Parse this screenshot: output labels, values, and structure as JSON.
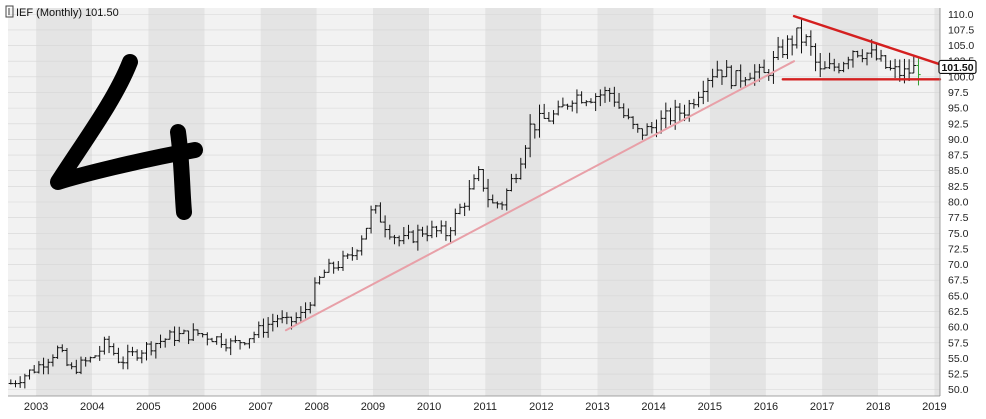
{
  "chart_data": {
    "type": "ohlc",
    "symbol": "IEF",
    "legend_label": "IEF (Monthly) 101.50",
    "last_price_label": "101.50",
    "annotation_digit": "4",
    "x_tick_labels": [
      "2003",
      "2004",
      "2005",
      "2006",
      "2007",
      "2008",
      "2009",
      "2010",
      "2011",
      "2012",
      "2013",
      "2014",
      "2015",
      "2016",
      "2017",
      "2018",
      "2019"
    ],
    "y_tick_labels": [
      "110.0",
      "107.5",
      "105.0",
      "102.5",
      "100.0",
      "97.5",
      "95.0",
      "92.5",
      "90.0",
      "87.5",
      "85.0",
      "82.5",
      "80.0",
      "77.5",
      "75.0",
      "72.5",
      "70.0",
      "67.5",
      "65.0",
      "62.5",
      "60.0",
      "57.5",
      "55.0",
      "52.5",
      "50.0"
    ],
    "ylim": [
      49.0,
      111.0
    ],
    "xlim": [
      2002.5,
      2019.1
    ],
    "y_scale": "linear",
    "grid": "alternating yearly bands",
    "monthly_closes_anchor_points": [
      [
        2002.55,
        51.0
      ],
      [
        2003.0,
        53.5
      ],
      [
        2003.4,
        56.5
      ],
      [
        2003.6,
        53.0
      ],
      [
        2004.0,
        55.0
      ],
      [
        2004.25,
        57.5
      ],
      [
        2004.5,
        54.5
      ],
      [
        2005.0,
        57.0
      ],
      [
        2005.4,
        58.5
      ],
      [
        2005.9,
        59.0
      ],
      [
        2006.3,
        58.0
      ],
      [
        2006.5,
        57.2
      ],
      [
        2006.9,
        59.0
      ],
      [
        2007.3,
        61.5
      ],
      [
        2007.45,
        60.5
      ],
      [
        2007.75,
        62.0
      ],
      [
        2008.1,
        68.5
      ],
      [
        2008.35,
        70.0
      ],
      [
        2008.6,
        71.0
      ],
      [
        2008.9,
        76.5
      ],
      [
        2009.0,
        79.0
      ],
      [
        2009.3,
        75.5
      ],
      [
        2009.5,
        73.5
      ],
      [
        2009.9,
        75.5
      ],
      [
        2010.3,
        75.0
      ],
      [
        2010.75,
        82.0
      ],
      [
        2010.9,
        84.5
      ],
      [
        2011.1,
        79.5
      ],
      [
        2011.3,
        80.0
      ],
      [
        2011.55,
        85.0
      ],
      [
        2011.8,
        92.0
      ],
      [
        2012.0,
        93.0
      ],
      [
        2012.3,
        94.0
      ],
      [
        2012.55,
        97.0
      ],
      [
        2012.9,
        97.0
      ],
      [
        2013.25,
        97.5
      ],
      [
        2013.45,
        94.0
      ],
      [
        2013.7,
        91.0
      ],
      [
        2013.9,
        91.5
      ],
      [
        2014.25,
        93.5
      ],
      [
        2014.6,
        95.0
      ],
      [
        2014.95,
        100.0
      ],
      [
        2015.15,
        101.5
      ],
      [
        2015.45,
        99.5
      ],
      [
        2015.7,
        101.0
      ],
      [
        2015.95,
        100.0
      ],
      [
        2016.3,
        104.5
      ],
      [
        2016.55,
        106.5
      ],
      [
        2016.75,
        105.5
      ],
      [
        2016.95,
        100.5
      ],
      [
        2017.3,
        102.0
      ],
      [
        2017.55,
        104.5
      ],
      [
        2017.75,
        104.0
      ],
      [
        2017.95,
        103.0
      ],
      [
        2018.2,
        101.0
      ],
      [
        2018.45,
        100.5
      ],
      [
        2018.7,
        101.5
      ]
    ],
    "trendlines": [
      {
        "name": "support",
        "color": "#e8a0a8",
        "from": [
          2007.45,
          59.5
        ],
        "to": [
          2016.5,
          102.5
        ]
      },
      {
        "name": "upper",
        "color": "#d42020",
        "from": [
          2016.5,
          109.7
        ],
        "to": [
          2019.1,
          102.0
        ]
      },
      {
        "name": "lower",
        "color": "#d42020",
        "from": [
          2016.3,
          99.6
        ],
        "to": [
          2019.1,
          99.6
        ]
      }
    ],
    "colors": {
      "bars": "#111111",
      "last_bar": "#2e9e2e",
      "band_light": "#f2f2f2",
      "band_dark": "#e4e4e4",
      "annotation": "#000000"
    }
  }
}
